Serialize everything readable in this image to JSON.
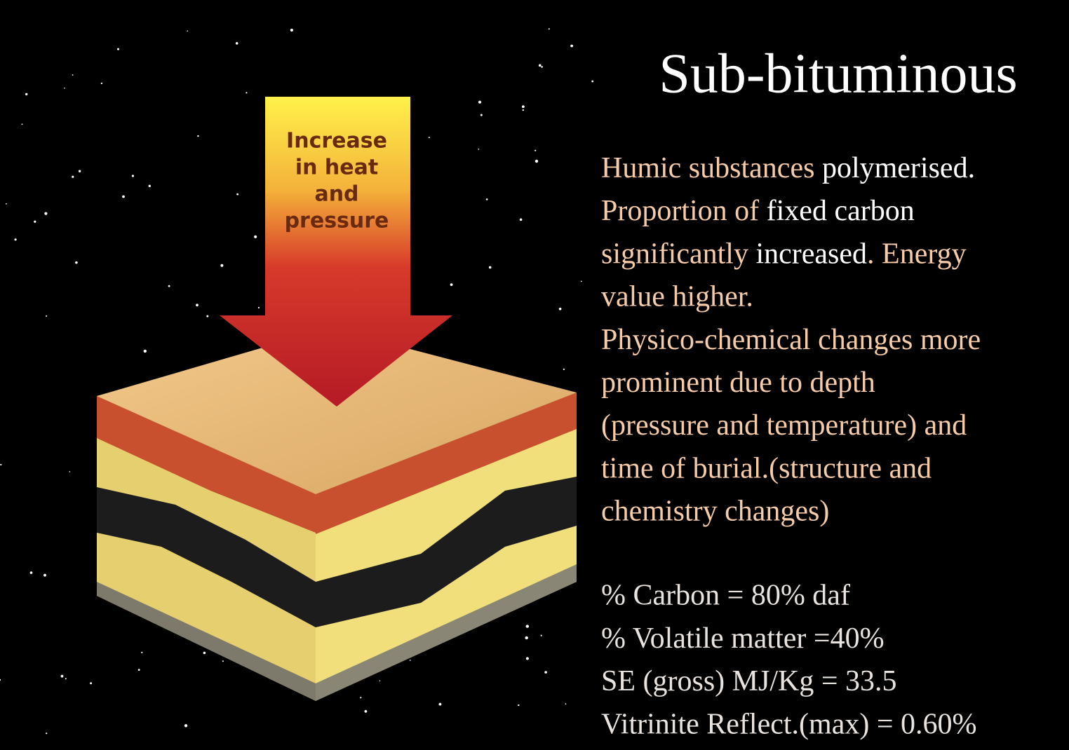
{
  "title": "Sub-bituminous",
  "arrow_label": [
    "Increase",
    "in heat",
    "and",
    "pressure"
  ],
  "description": [
    [
      {
        "text": "Humic substances ",
        "color": "#f6cba8"
      },
      {
        "text": "polymerised.",
        "color": "#ffffff"
      }
    ],
    [
      {
        "text": "Proportion of ",
        "color": "#f6cba8"
      },
      {
        "text": "fixed carbon",
        "color": "#ffffff"
      }
    ],
    [
      {
        "text": "significantly ",
        "color": "#f6cba8"
      },
      {
        "text": "increased",
        "color": "#ffffff"
      },
      {
        "text": ". Energy",
        "color": "#f6cba8"
      }
    ],
    [
      {
        "text": "value higher.",
        "color": "#f6cba8"
      }
    ],
    [
      {
        "text": "Physico-chemical changes more",
        "color": "#f6cba8"
      }
    ],
    [
      {
        "text": "prominent due to depth",
        "color": "#f6cba8"
      }
    ],
    [
      {
        "text": "(pressure and temperature) and",
        "color": "#f6cba8"
      }
    ],
    [
      {
        "text": "time of burial.(structure and",
        "color": "#f6cba8"
      }
    ],
    [
      {
        "text": "chemistry changes)",
        "color": "#f6cba8"
      }
    ]
  ],
  "properties": [
    "% Carbon = 80% daf",
    "% Volatile matter =40%",
    "SE (gross) MJ/Kg = 33.5",
    "Vitrinite Reflect.(max) = 0.60%"
  ]
}
